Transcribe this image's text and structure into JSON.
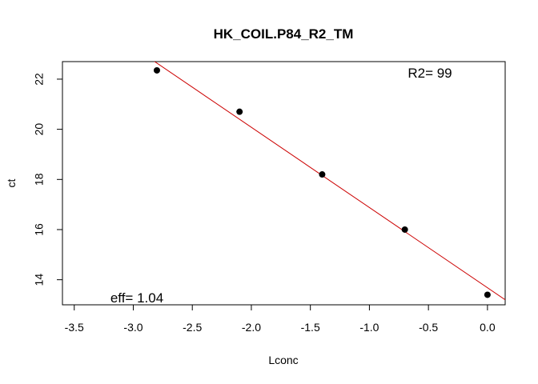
{
  "chart_data": {
    "type": "scatter",
    "title": "HK_COIL.P84_R2_TM",
    "xlabel": "Lconc",
    "ylabel": "ct",
    "xlim": [
      -3.6,
      0.15
    ],
    "ylim": [
      13.0,
      22.7
    ],
    "x_ticks": [
      -3.5,
      -3.0,
      -2.5,
      -2.0,
      -1.5,
      -1.0,
      -0.5,
      0.0
    ],
    "x_tick_labels": [
      "-3.5",
      "-3.0",
      "-2.5",
      "-2.0",
      "-1.5",
      "-1.0",
      "-0.5",
      "0.0"
    ],
    "y_ticks": [
      14,
      16,
      18,
      20,
      22
    ],
    "y_tick_labels": [
      "14",
      "16",
      "18",
      "20",
      "22"
    ],
    "grid": false,
    "points": [
      {
        "x": -2.8,
        "y": 22.35
      },
      {
        "x": -2.1,
        "y": 20.7
      },
      {
        "x": -1.4,
        "y": 18.2
      },
      {
        "x": -0.7,
        "y": 16.0
      },
      {
        "x": 0.0,
        "y": 13.4
      }
    ],
    "fit_line": {
      "slope": -3.2,
      "intercept": 13.68,
      "color": "#cc0000"
    },
    "point_color": "#000000",
    "annotations": {
      "r2": "R2= 99",
      "eff": "eff= 1.04"
    }
  }
}
